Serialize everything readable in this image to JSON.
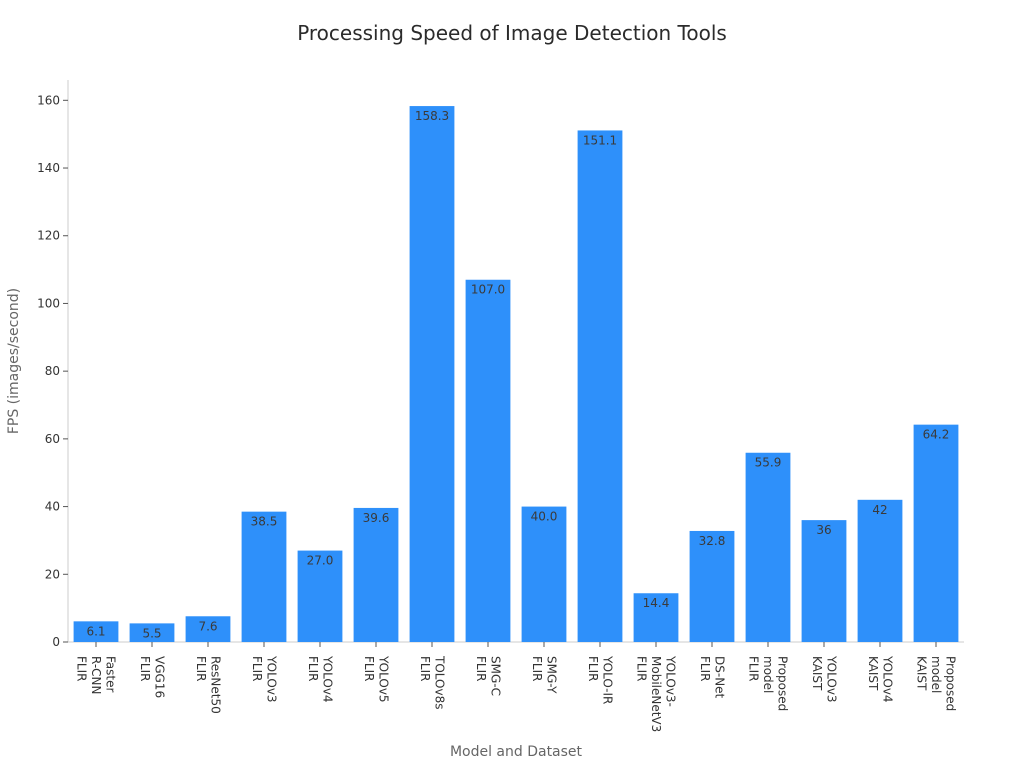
{
  "chart_data": {
    "type": "bar",
    "title": "Processing Speed of Image Detection Tools",
    "xlabel": "Model and Dataset",
    "ylabel": "FPS (images/second)",
    "ylim": [
      0,
      166
    ],
    "yticks": [
      0,
      20,
      40,
      60,
      80,
      100,
      120,
      140,
      160
    ],
    "grid": false,
    "legend": "none",
    "bar_color": "#2e90fa",
    "categories": [
      [
        "Faster",
        "R-CNN",
        "FLIR"
      ],
      [
        "VGG16",
        "FLIR"
      ],
      [
        "ResNet50",
        "FLIR"
      ],
      [
        "YOLOv3",
        "FLIR"
      ],
      [
        "YOLOv4",
        "FLIR"
      ],
      [
        "YOLOv5",
        "FLIR"
      ],
      [
        "TOLOv8s",
        "FLIR"
      ],
      [
        "SMG-C",
        "FLIR"
      ],
      [
        "SMG-Y",
        "FLIR"
      ],
      [
        "YOLO-IR",
        "FLIR"
      ],
      [
        "YOLOv3-",
        "MobileNetV3",
        "FLIR"
      ],
      [
        "DS-Net",
        "FLIR"
      ],
      [
        "Proposed",
        "model",
        "FLIR"
      ],
      [
        "YOLOv3",
        "KAIST"
      ],
      [
        "YOLOv4",
        "KAIST"
      ],
      [
        "Proposed",
        "model",
        "KAIST"
      ]
    ],
    "values": [
      6.1,
      5.5,
      7.6,
      38.5,
      27.0,
      39.6,
      158.3,
      107.0,
      40.0,
      151.1,
      14.4,
      32.8,
      55.9,
      36,
      42,
      64.2
    ],
    "data_labels": [
      "6.1",
      "5.5",
      "7.6",
      "38.5",
      "27.0",
      "39.6",
      "158.3",
      "107.0",
      "40.0",
      "151.1",
      "14.4",
      "32.8",
      "55.9",
      "36",
      "42",
      "64.2"
    ]
  }
}
